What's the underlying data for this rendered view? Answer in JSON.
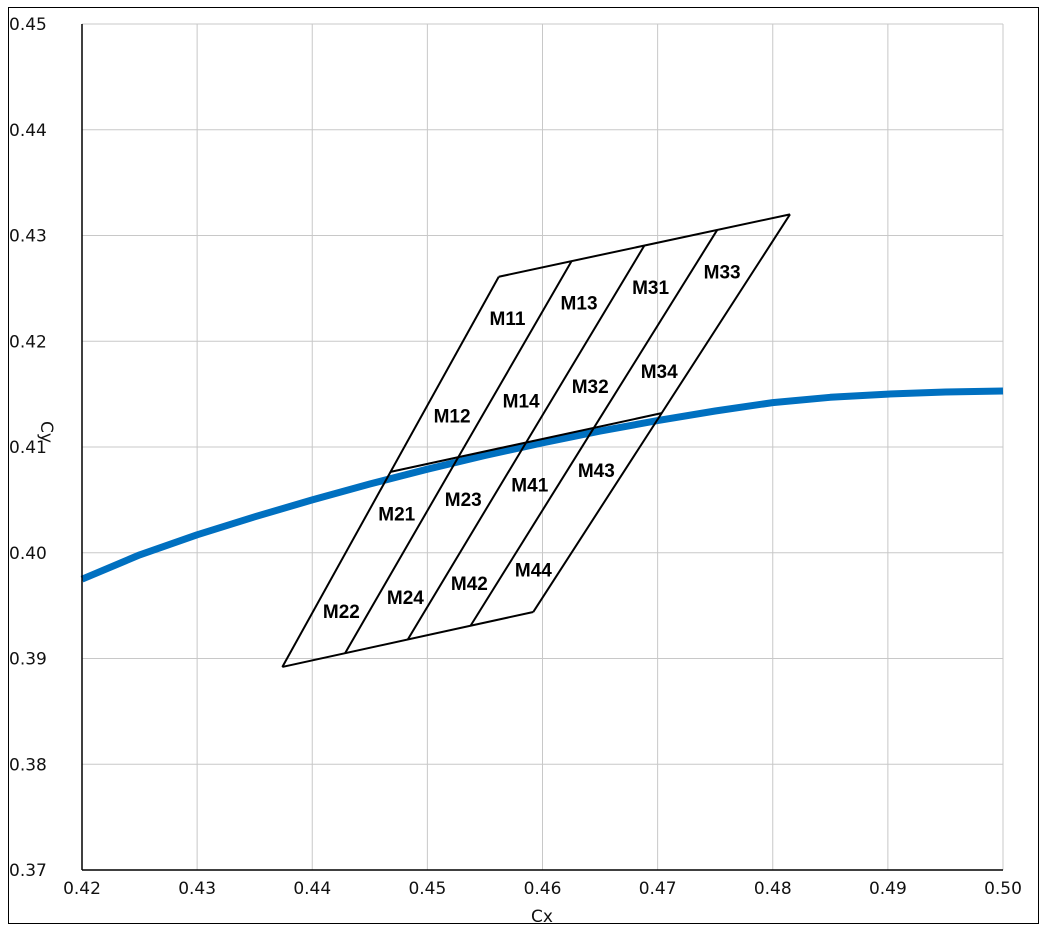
{
  "chart_data": {
    "type": "line",
    "xlabel": "Cx",
    "ylabel": "Cy",
    "xlim": [
      0.42,
      0.5
    ],
    "ylim": [
      0.37,
      0.45
    ],
    "x_ticks": [
      "0.42",
      "0.43",
      "0.44",
      "0.45",
      "0.46",
      "0.47",
      "0.48",
      "0.49",
      "0.50"
    ],
    "y_ticks": [
      "0.37",
      "0.38",
      "0.39",
      "0.40",
      "0.41",
      "0.42",
      "0.43",
      "0.44",
      "0.45"
    ],
    "grid": true,
    "colors": {
      "curve": "#0070c0",
      "grid": "#c8c8c8",
      "region": "#000000"
    },
    "series": [
      {
        "x": [
          0.42,
          0.425,
          0.43,
          0.435,
          0.44,
          0.445,
          0.45,
          0.455,
          0.46,
          0.465,
          0.47,
          0.475,
          0.48,
          0.485,
          0.49,
          0.495,
          0.5
        ],
        "y": [
          0.3975,
          0.3998,
          0.4017,
          0.4034,
          0.405,
          0.4065,
          0.4079,
          0.4092,
          0.4104,
          0.4115,
          0.4125,
          0.4134,
          0.4142,
          0.4147,
          0.415,
          0.4152,
          0.4153
        ]
      }
    ],
    "grid_region": {
      "corners": {
        "bottom_left": [
          0.4374,
          0.3892
        ],
        "bottom_right": [
          0.4592,
          0.3944
        ],
        "top_left": [
          0.4562,
          0.4261
        ],
        "top_right": [
          0.4815,
          0.432
        ]
      },
      "divisions": [
        4,
        4
      ],
      "labels": [
        [
          "M22",
          "M24",
          "M42",
          "M44"
        ],
        [
          "M21",
          "M23",
          "M41",
          "M43"
        ],
        [
          "M12",
          "M14",
          "M32",
          "M34"
        ],
        [
          "M11",
          "M13",
          "M31",
          "M33"
        ]
      ]
    }
  }
}
